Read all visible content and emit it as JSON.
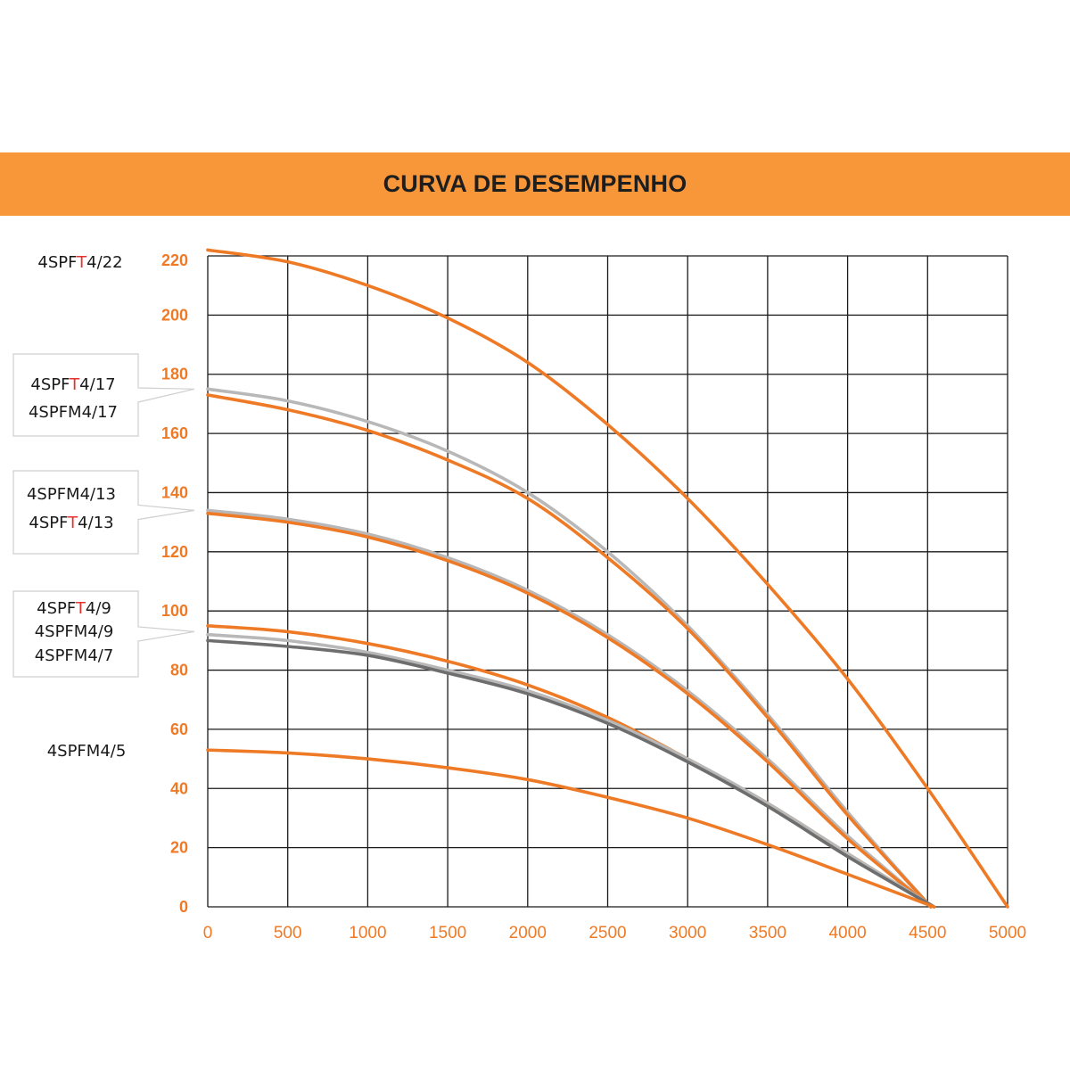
{
  "colors": {
    "banner": "#F7973A",
    "accent": "#EE7A26",
    "grid": "#1a1a1a",
    "curve_orange": "#EE7A26",
    "curve_light_gray": "#B8B8B8",
    "curve_dark_gray": "#6E6E6E",
    "highlight_T": "#E5322D"
  },
  "chart_data": {
    "type": "line",
    "title": "CURVA DE DESEMPENHO",
    "xlabel": "",
    "ylabel": "",
    "xlim": [
      0,
      5000
    ],
    "ylim": [
      0,
      220
    ],
    "x_ticks": [
      0,
      500,
      1000,
      1500,
      2000,
      2500,
      3000,
      3500,
      4000,
      4500,
      5000
    ],
    "y_ticks": [
      0,
      20,
      40,
      60,
      80,
      100,
      120,
      140,
      160,
      180,
      200,
      220
    ],
    "grid": true,
    "legend": "left",
    "series": [
      {
        "label_group": 0,
        "color": "orange",
        "shutoff": 222,
        "x_max": 5000,
        "x": [
          0,
          500,
          1000,
          1500,
          2000,
          2500,
          3000,
          3500,
          4000,
          4500,
          5000
        ],
        "y": [
          222,
          218,
          210,
          199,
          184,
          163,
          138,
          109,
          77,
          40,
          0
        ]
      },
      {
        "label_group": 1,
        "color": "light_gray",
        "shutoff": 175,
        "x_max": 4520,
        "x": [
          0,
          500,
          1000,
          1500,
          2000,
          2500,
          3000,
          3500,
          4000,
          4520
        ],
        "y": [
          175,
          171,
          164,
          154,
          140,
          120,
          95,
          65,
          32,
          0
        ]
      },
      {
        "label_group": 1,
        "color": "orange",
        "shutoff": 173,
        "x_max": 4520,
        "x": [
          0,
          500,
          1000,
          1500,
          2000,
          2500,
          3000,
          3500,
          4000,
          4520
        ],
        "y": [
          173,
          168,
          161,
          151,
          138,
          118,
          94,
          64,
          31,
          0
        ]
      },
      {
        "label_group": 2,
        "color": "light_gray",
        "shutoff": 134,
        "x_max": 4520,
        "x": [
          0,
          500,
          1000,
          1500,
          2000,
          2500,
          3000,
          3500,
          4000,
          4520
        ],
        "y": [
          134,
          131,
          126,
          118,
          107,
          92,
          73,
          50,
          24,
          0
        ]
      },
      {
        "label_group": 2,
        "color": "orange",
        "shutoff": 133,
        "x_max": 4520,
        "x": [
          0,
          500,
          1000,
          1500,
          2000,
          2500,
          3000,
          3500,
          4000,
          4520
        ],
        "y": [
          133,
          130,
          125,
          117,
          106,
          91,
          72,
          49,
          23,
          0
        ]
      },
      {
        "label_group": 3,
        "color": "orange",
        "shutoff": 95,
        "x_max": 4540,
        "x": [
          0,
          500,
          1000,
          1500,
          2000,
          2500,
          3000,
          3500,
          4000,
          4540
        ],
        "y": [
          95,
          93,
          89,
          83,
          75,
          64,
          50,
          35,
          18,
          0
        ]
      },
      {
        "label_group": 3,
        "color": "light_gray",
        "shutoff": 92,
        "x_max": 4540,
        "x": [
          0,
          500,
          1000,
          1500,
          2000,
          2500,
          3000,
          3500,
          4000,
          4540
        ],
        "y": [
          92,
          90,
          86,
          80,
          73,
          63,
          50,
          35,
          18,
          0
        ]
      },
      {
        "label_group": 3,
        "color": "dark_gray",
        "shutoff": 90,
        "x_max": 4540,
        "x": [
          0,
          500,
          1000,
          1500,
          2000,
          2500,
          3000,
          3500,
          4000,
          4540
        ],
        "y": [
          90,
          88,
          85,
          79,
          72,
          62,
          49,
          34,
          17,
          0
        ]
      },
      {
        "label_group": 4,
        "color": "orange",
        "shutoff": 53,
        "x_max": 4540,
        "x": [
          0,
          500,
          1000,
          1500,
          2000,
          2500,
          3000,
          3500,
          4000,
          4540
        ],
        "y": [
          53,
          52,
          50,
          47,
          43,
          37,
          30,
          21,
          11,
          0
        ]
      }
    ]
  },
  "labels": {
    "group0": [
      {
        "pre": "4SPF",
        "T": "T",
        "post": "4/22"
      }
    ],
    "group1": [
      {
        "pre": "4SPF",
        "T": "T",
        "post": "4/17"
      },
      {
        "pre": "4SPFM4/17",
        "T": "",
        "post": ""
      }
    ],
    "group2": [
      {
        "pre": "4SPFM4/13",
        "T": "",
        "post": ""
      },
      {
        "pre": "4SPF",
        "T": "T",
        "post": "4/13"
      }
    ],
    "group3": [
      {
        "pre": "4SPF",
        "T": "T",
        "post": "4/9"
      },
      {
        "pre": "4SPFM4/9",
        "T": "",
        "post": ""
      },
      {
        "pre": "4SPFM4/7",
        "T": "",
        "post": ""
      }
    ],
    "group4": [
      {
        "pre": "4SPFM4/5",
        "T": "",
        "post": ""
      }
    ]
  }
}
